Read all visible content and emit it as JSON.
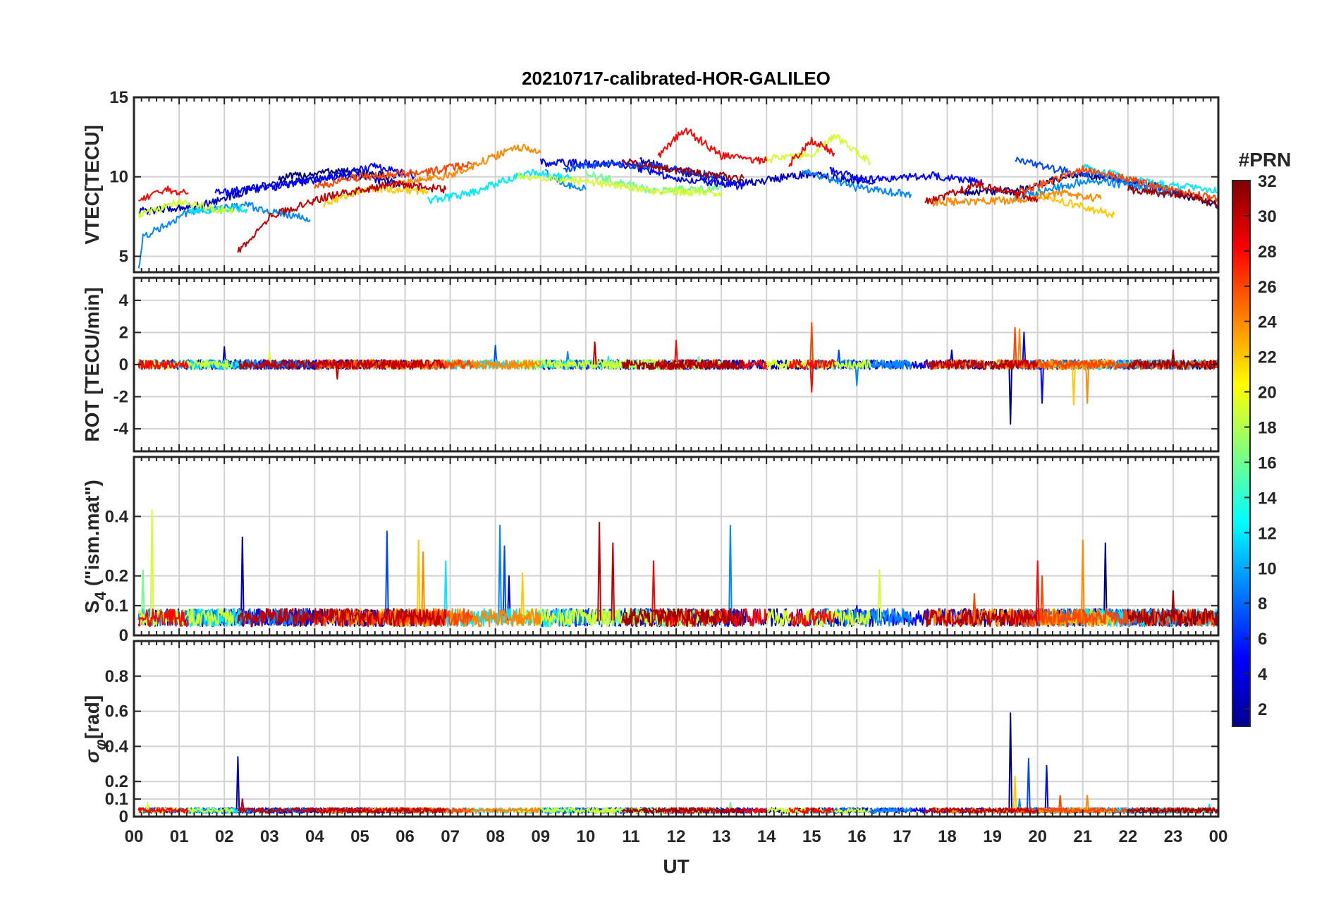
{
  "chart_data": {
    "type": "line",
    "title": "20210717-calibrated-HOR-GALILEO",
    "xlabel": "UT",
    "x_ticks": [
      "00",
      "01",
      "02",
      "03",
      "04",
      "05",
      "06",
      "07",
      "08",
      "09",
      "10",
      "11",
      "12",
      "13",
      "14",
      "15",
      "16",
      "17",
      "18",
      "19",
      "20",
      "21",
      "22",
      "23",
      "00"
    ],
    "xlim_hours": [
      0,
      24
    ],
    "colorbar": {
      "label": "#PRN",
      "range": [
        1,
        32
      ],
      "ticks": [
        "2",
        "4",
        "6",
        "8",
        "10",
        "12",
        "14",
        "16",
        "18",
        "20",
        "22",
        "24",
        "26",
        "28",
        "30",
        "32"
      ],
      "colormap": "jet"
    },
    "panels": [
      {
        "id": "vtec",
        "ylabel": "VTEC[TECU]",
        "ylim": [
          4,
          15
        ],
        "y_ticks": [
          {
            "value": 5,
            "label": "5"
          },
          {
            "value": 10,
            "label": "10"
          },
          {
            "value": 15,
            "label": "15"
          }
        ],
        "grid": true
      },
      {
        "id": "rot",
        "ylabel": "ROT [TECU/min]",
        "ylim": [
          -5.4,
          5.4
        ],
        "y_ticks": [
          {
            "value": -4,
            "label": "-4"
          },
          {
            "value": -2,
            "label": "-2"
          },
          {
            "value": 0,
            "label": "0"
          },
          {
            "value": 2,
            "label": "2"
          },
          {
            "value": 4,
            "label": "4"
          }
        ],
        "grid": true
      },
      {
        "id": "s4",
        "ylabel_main": "S",
        "ylabel_sub": "4",
        "ylabel_rest": " (\"ism.mat\")",
        "ylim": [
          0,
          0.6
        ],
        "y_ticks": [
          {
            "value": 0,
            "label": "0"
          },
          {
            "value": 0.1,
            "label": "0.1"
          },
          {
            "value": 0.2,
            "label": "0.2"
          },
          {
            "value": 0.4,
            "label": "0.4"
          }
        ],
        "grid": true
      },
      {
        "id": "sigma",
        "ylabel_main": "σ",
        "ylabel_sub": "φ",
        "ylabel_rest": "[rad]",
        "ylim": [
          0,
          1.0
        ],
        "y_ticks": [
          {
            "value": 0,
            "label": "0"
          },
          {
            "value": 0.1,
            "label": "0.1"
          },
          {
            "value": 0.2,
            "label": "0.2"
          },
          {
            "value": 0.4,
            "label": "0.4"
          },
          {
            "value": 0.6,
            "label": "0.6"
          },
          {
            "value": 0.8,
            "label": "0.8"
          }
        ],
        "grid": true
      }
    ],
    "series": [
      {
        "name": "PRN 1",
        "prn": 1,
        "vtec_segments": [
          [
            [
              3.2,
              9.9
            ],
            [
              4.5,
              10.4
            ],
            [
              5.8,
              10.0
            ]
          ],
          [
            [
              18.3,
              9.0
            ],
            [
              19.5,
              9.1
            ],
            [
              20.9,
              10.2
            ],
            [
              22.5,
              9.5
            ],
            [
              24.0,
              8.2
            ]
          ]
        ],
        "rot_spikes": [
          [
            19.4,
            -3.7
          ]
        ],
        "s4_spikes": [
          [
            21.5,
            0.31
          ]
        ],
        "sigma_spikes": [
          [
            19.4,
            0.59
          ]
        ]
      },
      {
        "name": "PRN 3",
        "prn": 3,
        "vtec_segments": [
          [
            [
              0.1,
              7.8
            ],
            [
              1.5,
              8.2
            ],
            [
              2.8,
              9.4
            ],
            [
              4.8,
              10.1
            ],
            [
              6.0,
              9.5
            ]
          ],
          [
            [
              11.2,
              11.0
            ],
            [
              12.6,
              10.0
            ],
            [
              13.5,
              9.6
            ],
            [
              15.0,
              10.2
            ],
            [
              16.4,
              9.6
            ]
          ]
        ],
        "rot_spikes": [
          [
            2.0,
            1.1
          ],
          [
            18.1,
            0.9
          ]
        ],
        "s4_spikes": [
          [
            2.4,
            0.33
          ],
          [
            8.3,
            0.2
          ]
        ],
        "sigma_spikes": [
          [
            2.3,
            0.34
          ]
        ]
      },
      {
        "name": "PRN 5",
        "prn": 5,
        "vtec_segments": [
          [
            [
              1.8,
              9.0
            ],
            [
              3.2,
              9.4
            ],
            [
              4.4,
              10.0
            ],
            [
              5.4,
              10.7
            ],
            [
              6.2,
              10.0
            ]
          ],
          [
            [
              9.0,
              10.9
            ],
            [
              10.8,
              10.8
            ],
            [
              12.0,
              9.9
            ],
            [
              13.5,
              9.4
            ]
          ],
          [
            [
              15.4,
              10.4
            ],
            [
              16.2,
              9.8
            ],
            [
              17.7,
              10.1
            ],
            [
              18.8,
              9.6
            ]
          ]
        ],
        "rot_spikes": [
          [
            19.7,
            2.0
          ],
          [
            20.1,
            -2.4
          ]
        ],
        "s4_spikes": [
          [
            16.0,
            0.1
          ]
        ],
        "sigma_spikes": [
          [
            20.2,
            0.29
          ]
        ]
      },
      {
        "name": "PRN 7",
        "prn": 7,
        "vtec_segments": [
          [
            [
              9.5,
              10.5
            ],
            [
              10.5,
              10.9
            ],
            [
              11.7,
              10.6
            ],
            [
              13.0,
              10.0
            ]
          ],
          [
            [
              19.5,
              11.2
            ],
            [
              20.3,
              10.5
            ],
            [
              21.4,
              10.1
            ],
            [
              23.2,
              9.0
            ]
          ]
        ],
        "rot_spikes": [
          [
            8.0,
            1.2
          ],
          [
            15.6,
            0.9
          ]
        ],
        "s4_spikes": [
          [
            5.6,
            0.35
          ],
          [
            8.2,
            0.3
          ]
        ],
        "sigma_spikes": [
          [
            19.8,
            0.33
          ]
        ]
      },
      {
        "name": "PRN 9",
        "prn": 9,
        "vtec_segments": [
          [
            [
              0.1,
              4.2
            ],
            [
              0.2,
              6.2
            ],
            [
              1.2,
              7.8
            ],
            [
              2.5,
              8.2
            ],
            [
              3.9,
              7.3
            ]
          ],
          [
            [
              9.1,
              10.3
            ],
            [
              9.5,
              9.5
            ],
            [
              10.0,
              9.2
            ]
          ],
          [
            [
              14.8,
              10.4
            ],
            [
              16.0,
              9.3
            ],
            [
              17.2,
              8.9
            ]
          ],
          [
            [
              19.5,
              8.7
            ],
            [
              21.2,
              9.8
            ],
            [
              23.0,
              9.0
            ]
          ]
        ],
        "rot_spikes": [
          [
            9.6,
            0.8
          ],
          [
            16.0,
            -1.3
          ]
        ],
        "s4_spikes": [
          [
            8.1,
            0.37
          ],
          [
            13.2,
            0.37
          ]
        ],
        "sigma_spikes": [
          [
            19.6,
            0.1
          ]
        ]
      },
      {
        "name": "PRN 12",
        "prn": 12,
        "vtec_segments": [
          [
            [
              1.2,
              7.9
            ],
            [
              2.5,
              8.0
            ]
          ],
          [
            [
              6.5,
              8.5
            ],
            [
              7.5,
              9.0
            ],
            [
              8.7,
              10.3
            ],
            [
              9.7,
              9.9
            ]
          ],
          [
            [
              21.0,
              10.6
            ],
            [
              22.5,
              9.6
            ],
            [
              24.0,
              9.1
            ]
          ]
        ],
        "rot_spikes": [
          [
            10.5,
            0.5
          ]
        ],
        "s4_spikes": [
          [
            6.9,
            0.25
          ],
          [
            22.8,
            0.08
          ]
        ],
        "sigma_spikes": [
          [
            23.8,
            0.07
          ]
        ]
      },
      {
        "name": "PRN 16",
        "prn": 16,
        "vtec_segments": [
          [
            [
              10.0,
              10.2
            ],
            [
              11.5,
              9.1
            ],
            [
              13.0,
              9.3
            ]
          ]
        ],
        "rot_spikes": [
          [
            12.5,
            0.5
          ]
        ],
        "s4_spikes": [
          [
            0.2,
            0.22
          ]
        ],
        "sigma_spikes": [
          [
            13.2,
            0.08
          ]
        ]
      },
      {
        "name": "PRN 19",
        "prn": 19,
        "vtec_segments": [
          [
            [
              0.1,
              7.6
            ],
            [
              1.0,
              8.4
            ],
            [
              2.2,
              7.8
            ]
          ],
          [
            [
              8.5,
              10.1
            ],
            [
              10.0,
              9.7
            ],
            [
              11.5,
              9.1
            ],
            [
              13.0,
              9.0
            ]
          ],
          [
            [
              14.0,
              11.1
            ],
            [
              15.0,
              11.4
            ],
            [
              15.5,
              12.6
            ],
            [
              16.3,
              10.9
            ]
          ]
        ],
        "rot_spikes": [
          [
            3.0,
            0.8
          ],
          [
            14.0,
            0.3
          ]
        ],
        "s4_spikes": [
          [
            0.4,
            0.42
          ],
          [
            16.5,
            0.22
          ]
        ],
        "sigma_spikes": [
          [
            0.3,
            0.08
          ]
        ]
      },
      {
        "name": "PRN 22",
        "prn": 22,
        "vtec_segments": [
          [
            [
              4.2,
              8.3
            ],
            [
              5.2,
              9.3
            ],
            [
              6.5,
              9.1
            ]
          ],
          [
            [
              20.0,
              8.9
            ],
            [
              20.9,
              8.2
            ],
            [
              21.7,
              7.6
            ]
          ]
        ],
        "rot_spikes": [
          [
            20.8,
            -2.5
          ]
        ],
        "s4_spikes": [
          [
            6.3,
            0.32
          ],
          [
            8.6,
            0.21
          ]
        ],
        "sigma_spikes": [
          [
            19.5,
            0.23
          ]
        ]
      },
      {
        "name": "PRN 24",
        "prn": 24,
        "vtec_segments": [
          [
            [
              5.7,
              9.5
            ],
            [
              7.0,
              10.1
            ],
            [
              8.5,
              11.9
            ],
            [
              9.0,
              11.5
            ]
          ],
          [
            [
              17.6,
              8.4
            ],
            [
              19.6,
              8.5
            ],
            [
              20.5,
              9.0
            ],
            [
              21.4,
              8.6
            ]
          ]
        ],
        "rot_spikes": [
          [
            19.6,
            2.2
          ],
          [
            21.1,
            -2.4
          ]
        ],
        "s4_spikes": [
          [
            6.4,
            0.28
          ],
          [
            21.0,
            0.32
          ]
        ],
        "sigma_spikes": [
          [
            21.1,
            0.12
          ]
        ]
      },
      {
        "name": "PRN 26",
        "prn": 26,
        "vtec_segments": [
          [
            [
              4.0,
              9.4
            ],
            [
              5.0,
              10.0
            ],
            [
              6.5,
              10.3
            ],
            [
              7.5,
              10.8
            ]
          ],
          [
            [
              19.5,
              8.9
            ],
            [
              21.0,
              10.5
            ],
            [
              22.5,
              9.5
            ],
            [
              24.0,
              8.6
            ]
          ]
        ],
        "rot_spikes": [
          [
            15.0,
            2.6
          ],
          [
            19.5,
            2.3
          ]
        ],
        "s4_spikes": [
          [
            18.6,
            0.14
          ],
          [
            20.1,
            0.2
          ]
        ],
        "sigma_spikes": [
          [
            20.5,
            0.12
          ]
        ]
      },
      {
        "name": "PRN 28",
        "prn": 28,
        "vtec_segments": [
          [
            [
              0.1,
              8.6
            ],
            [
              0.7,
              9.2
            ],
            [
              1.2,
              9.0
            ]
          ],
          [
            [
              11.6,
              11.3
            ],
            [
              12.2,
              13.0
            ],
            [
              13.0,
              11.3
            ],
            [
              14.0,
              11.0
            ]
          ],
          [
            [
              14.5,
              10.8
            ],
            [
              15.0,
              12.3
            ],
            [
              15.5,
              11.5
            ]
          ]
        ],
        "rot_spikes": [
          [
            12.0,
            1.5
          ],
          [
            15.0,
            -1.7
          ]
        ],
        "s4_spikes": [
          [
            11.5,
            0.25
          ],
          [
            20.0,
            0.25
          ]
        ],
        "sigma_spikes": [
          [
            14.9,
            0.05
          ]
        ]
      },
      {
        "name": "PRN 30",
        "prn": 30,
        "vtec_segments": [
          [
            [
              2.3,
              5.3
            ],
            [
              3.0,
              7.5
            ],
            [
              4.2,
              8.7
            ],
            [
              5.8,
              9.6
            ],
            [
              6.9,
              9.2
            ]
          ],
          [
            [
              17.5,
              8.4
            ],
            [
              18.7,
              9.5
            ],
            [
              20.0,
              8.6
            ]
          ]
        ],
        "rot_spikes": [
          [
            10.2,
            1.4
          ],
          [
            4.5,
            -0.9
          ]
        ],
        "s4_spikes": [
          [
            10.3,
            0.38
          ],
          [
            10.6,
            0.31
          ]
        ],
        "sigma_spikes": [
          [
            2.4,
            0.1
          ]
        ]
      },
      {
        "name": "PRN 31",
        "prn": 31,
        "vtec_segments": [
          [
            [
              10.8,
              11.0
            ],
            [
              11.5,
              10.6
            ],
            [
              12.5,
              10.2
            ],
            [
              13.5,
              9.9
            ]
          ],
          [
            [
              22.0,
              9.2
            ],
            [
              23.3,
              8.8
            ],
            [
              24.0,
              8.2
            ]
          ]
        ],
        "rot_spikes": [
          [
            23.0,
            0.9
          ]
        ],
        "s4_spikes": [
          [
            23.0,
            0.15
          ]
        ],
        "sigma_spikes": [
          [
            22.5,
            0.05
          ]
        ]
      }
    ]
  }
}
